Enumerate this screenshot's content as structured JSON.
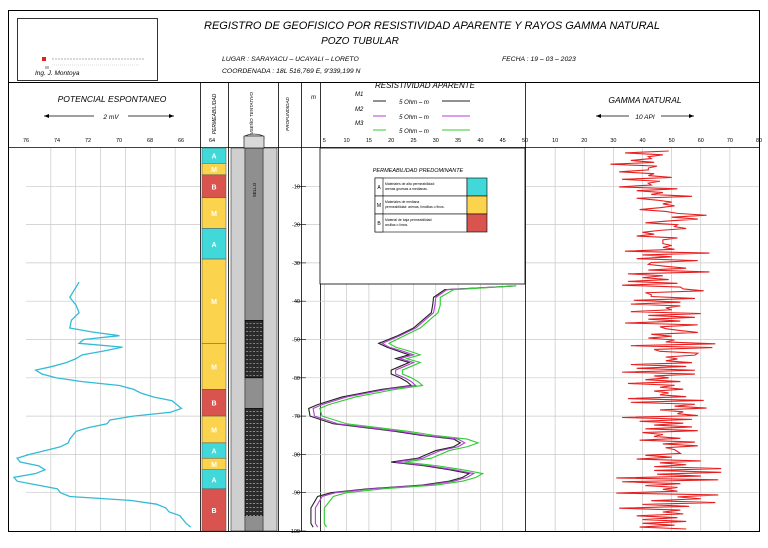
{
  "header": {
    "title": "REGISTRO DE GEOFISICO POR RESISTIVIDAD APARENTE Y RAYOS GAMMA NATURAL",
    "subtitle": "POZO TUBULAR",
    "location": "LUGAR : SARAYACU – UCAYALI – LORETO",
    "coordinates": "COORDENADA :  18L 516,769 E, 9'339,199  N",
    "date": "FECHA :  19 – 03 – 2023",
    "author": "Ing. J. Montoya"
  },
  "colors": {
    "sp": "#33bbd6",
    "gamma": "#e61e1e",
    "m1": "#222222",
    "m2": "#b03fd6",
    "m3": "#2ecc2e",
    "perm_A": "#40d8d8",
    "perm_M": "#fbd34d",
    "perm_B": "#d9534f"
  },
  "chart_data": [
    {
      "type": "line",
      "title": "POTENCIAL ESPONTANEO",
      "scale_label": "2 mV",
      "x_ticks": [
        "76",
        "74",
        "72",
        "70",
        "68",
        "66",
        "64"
      ],
      "xlim": [
        76,
        64
      ],
      "ylim": [
        0,
        100
      ],
      "y_name": "depth (m)",
      "points": [
        [
          71.8,
          35
        ],
        [
          72.1,
          37
        ],
        [
          72.4,
          39
        ],
        [
          72.0,
          41
        ],
        [
          71.8,
          43
        ],
        [
          72.3,
          45
        ],
        [
          72.4,
          47
        ],
        [
          71.0,
          48
        ],
        [
          69.2,
          49
        ],
        [
          71.5,
          50
        ],
        [
          71.8,
          51
        ],
        [
          69.0,
          52
        ],
        [
          70.2,
          53
        ],
        [
          71.6,
          54
        ],
        [
          72.0,
          55
        ],
        [
          72.6,
          56
        ],
        [
          73.5,
          57
        ],
        [
          74.6,
          58
        ],
        [
          74.2,
          59
        ],
        [
          73.3,
          60
        ],
        [
          71.6,
          61
        ],
        [
          69.2,
          62
        ],
        [
          68.3,
          63
        ],
        [
          67.8,
          64
        ],
        [
          67.0,
          65
        ],
        [
          65.8,
          66
        ],
        [
          65.5,
          67
        ],
        [
          65.2,
          68
        ],
        [
          65.9,
          69
        ],
        [
          68.3,
          70
        ],
        [
          69.8,
          71
        ],
        [
          70.0,
          72
        ],
        [
          71.2,
          73
        ],
        [
          72.0,
          74
        ],
        [
          72.2,
          75
        ],
        [
          72.4,
          76
        ],
        [
          72.5,
          77
        ],
        [
          73.0,
          78
        ],
        [
          74.0,
          79
        ],
        [
          75.0,
          80
        ],
        [
          75.8,
          81
        ],
        [
          75.6,
          82
        ],
        [
          74.4,
          83
        ],
        [
          74.0,
          84
        ],
        [
          74.6,
          85
        ],
        [
          76.0,
          86
        ],
        [
          75.8,
          87
        ],
        [
          74.5,
          88
        ],
        [
          73.2,
          89
        ],
        [
          73.0,
          90
        ],
        [
          72.4,
          91
        ],
        [
          68.5,
          92
        ],
        [
          66.8,
          93
        ],
        [
          66.2,
          94
        ],
        [
          66.0,
          95
        ],
        [
          65.3,
          96
        ],
        [
          65.1,
          97
        ],
        [
          64.9,
          98
        ],
        [
          64.6,
          99
        ]
      ]
    },
    {
      "type": "table",
      "title": "PERMEABILIDAD",
      "ylim": [
        0,
        100
      ],
      "intervals": [
        {
          "label": "A",
          "from": 0,
          "to": 4
        },
        {
          "label": "M",
          "from": 4,
          "to": 7
        },
        {
          "label": "B",
          "from": 7,
          "to": 13
        },
        {
          "label": "M",
          "from": 13,
          "to": 21
        },
        {
          "label": "A",
          "from": 21,
          "to": 29
        },
        {
          "label": "M",
          "from": 29,
          "to": 51
        },
        {
          "label": "M",
          "from": 51,
          "to": 63
        },
        {
          "label": "B",
          "from": 63,
          "to": 70
        },
        {
          "label": "M",
          "from": 70,
          "to": 77
        },
        {
          "label": "A",
          "from": 77,
          "to": 81
        },
        {
          "label": "M",
          "from": 81,
          "to": 84
        },
        {
          "label": "A",
          "from": 84,
          "to": 89
        },
        {
          "label": "B",
          "from": 89,
          "to": 100
        }
      ]
    },
    {
      "type": "table",
      "title": "DISEÑO TENTATIVO",
      "ylim": [
        0,
        100
      ],
      "seal_label": "SELLO",
      "blank_casing": [
        [
          0,
          45
        ],
        [
          60,
          68
        ],
        [
          96,
          100
        ]
      ],
      "screens": [
        [
          45,
          60
        ],
        [
          68,
          96
        ]
      ]
    },
    {
      "type": "line",
      "title": "RESISTIVIDAD APARENTE",
      "depth_label": "PROFUNDIDAD",
      "depth_unit": "m",
      "x_ticks": [
        "5",
        "10",
        "15",
        "20",
        "25",
        "30",
        "35",
        "40",
        "45",
        "50"
      ],
      "y_ticks": [
        "-10",
        "-20",
        "-30",
        "-40",
        "-50",
        "-60",
        "-70",
        "-80",
        "-90",
        "-100"
      ],
      "xlim": [
        0,
        50
      ],
      "ylim": [
        0,
        100
      ],
      "scale_labels": [
        "5 Ohm – m",
        "5 Ohm – m",
        "5 Ohm – m"
      ],
      "series": [
        {
          "name": "M1",
          "points": [
            [
              48,
              36
            ],
            [
              32,
              37
            ],
            [
              29.5,
              39
            ],
            [
              29.3,
              41
            ],
            [
              29.0,
              43
            ],
            [
              27,
              45
            ],
            [
              25,
              47
            ],
            [
              21.5,
              49
            ],
            [
              17.2,
              51
            ],
            [
              19.0,
              52
            ],
            [
              21.5,
              53
            ],
            [
              24,
              54
            ],
            [
              21,
              55
            ],
            [
              24,
              56
            ],
            [
              22,
              57
            ],
            [
              20,
              58
            ],
            [
              20.0,
              59
            ],
            [
              22.0,
              60
            ],
            [
              23.5,
              61
            ],
            [
              24.5,
              62
            ],
            [
              18,
              63
            ],
            [
              9.0,
              65
            ],
            [
              3.5,
              67
            ],
            [
              1.5,
              68
            ],
            [
              1.8,
              70
            ],
            [
              7.0,
              72
            ],
            [
              14,
              73
            ],
            [
              21.0,
              74
            ],
            [
              26.5,
              75
            ],
            [
              34.0,
              76
            ],
            [
              35.5,
              77
            ],
            [
              34.0,
              78
            ],
            [
              30,
              79
            ],
            [
              26,
              81
            ],
            [
              20.0,
              82
            ],
            [
              27.5,
              83
            ],
            [
              33.0,
              84
            ],
            [
              37.5,
              85
            ],
            [
              36.0,
              86
            ],
            [
              33.0,
              87
            ],
            [
              27,
              88
            ],
            [
              14.5,
              89
            ],
            [
              6.5,
              90
            ],
            [
              3.5,
              91
            ],
            [
              2.0,
              94
            ],
            [
              2.0,
              98
            ],
            [
              2.5,
              99
            ]
          ]
        },
        {
          "name": "M2",
          "points": [
            [
              48,
              36
            ],
            [
              32.5,
              37
            ],
            [
              30,
              39
            ],
            [
              29.8,
              41
            ],
            [
              29.5,
              43
            ],
            [
              27.5,
              45
            ],
            [
              25.5,
              47
            ],
            [
              22,
              49
            ],
            [
              18,
              51
            ],
            [
              19.5,
              52
            ],
            [
              22.5,
              53
            ],
            [
              25,
              54
            ],
            [
              22,
              55
            ],
            [
              25,
              56
            ],
            [
              23,
              57
            ],
            [
              21,
              58
            ],
            [
              21,
              59
            ],
            [
              23,
              60
            ],
            [
              24.5,
              61
            ],
            [
              25.5,
              62
            ],
            [
              19,
              63
            ],
            [
              10,
              65
            ],
            [
              4.5,
              67
            ],
            [
              2.5,
              68
            ],
            [
              2.8,
              70
            ],
            [
              8,
              72
            ],
            [
              15,
              73
            ],
            [
              22,
              74
            ],
            [
              27.5,
              75
            ],
            [
              35,
              76
            ],
            [
              36.5,
              77
            ],
            [
              35,
              78
            ],
            [
              31,
              79
            ],
            [
              27,
              81
            ],
            [
              21,
              82
            ],
            [
              28.5,
              83
            ],
            [
              34,
              84
            ],
            [
              38.5,
              85
            ],
            [
              37,
              86
            ],
            [
              34,
              87
            ],
            [
              28,
              88
            ],
            [
              15.5,
              89
            ],
            [
              7.5,
              90
            ],
            [
              4.5,
              91
            ],
            [
              3,
              94
            ],
            [
              3,
              98
            ],
            [
              3.5,
              99
            ]
          ]
        },
        {
          "name": "M3",
          "points": [
            [
              48,
              36
            ],
            [
              34,
              37
            ],
            [
              31,
              39
            ],
            [
              31,
              41
            ],
            [
              30.5,
              43
            ],
            [
              28.5,
              45
            ],
            [
              26.5,
              47
            ],
            [
              23,
              49
            ],
            [
              19.5,
              51
            ],
            [
              21,
              52
            ],
            [
              24,
              53
            ],
            [
              26.5,
              54
            ],
            [
              23.5,
              55
            ],
            [
              26.5,
              56
            ],
            [
              24.5,
              57
            ],
            [
              22.5,
              58
            ],
            [
              22.5,
              59
            ],
            [
              24.5,
              60
            ],
            [
              26,
              61
            ],
            [
              27,
              62
            ],
            [
              21,
              63
            ],
            [
              12,
              65
            ],
            [
              6,
              67
            ],
            [
              4,
              68
            ],
            [
              4.5,
              70
            ],
            [
              10,
              72
            ],
            [
              17,
              73
            ],
            [
              24,
              74
            ],
            [
              29.5,
              75
            ],
            [
              37,
              76
            ],
            [
              39.5,
              77
            ],
            [
              37,
              78
            ],
            [
              33,
              79
            ],
            [
              29,
              81
            ],
            [
              23,
              82
            ],
            [
              30.5,
              83
            ],
            [
              36,
              84
            ],
            [
              40.5,
              85
            ],
            [
              39,
              86
            ],
            [
              36,
              87
            ],
            [
              30,
              88
            ],
            [
              18,
              89
            ],
            [
              10,
              90
            ],
            [
              7,
              91
            ],
            [
              5,
              94
            ],
            [
              5,
              98
            ],
            [
              5.5,
              99
            ]
          ]
        }
      ],
      "legend_box": {
        "title": "PERMEABILIDAD PREDOMINANTE",
        "rows": [
          {
            "key": "A",
            "text": "Materiales de alta permeabilidad: arenas gruesas a medianas."
          },
          {
            "key": "M",
            "text": "Materiales de mediana permeabilidad: arenas, limolitas o finos."
          },
          {
            "key": "B",
            "text": "Material de baja permeabilidad: arcillas o limos."
          }
        ]
      }
    },
    {
      "type": "line",
      "title": "GAMMA NATURAL",
      "scale_label": "10 API",
      "x_ticks": [
        "10",
        "20",
        "30",
        "40",
        "50",
        "60",
        "70",
        "80"
      ],
      "xlim": [
        0,
        80
      ],
      "ylim": [
        0,
        100
      ],
      "series": [
        {
          "name": "",
          "values": [
            49,
            34,
            47,
            42,
            43,
            36,
            44,
            29,
            45,
            42,
            42,
            32,
            44,
            42,
            50,
            33,
            46,
            42,
            43,
            32,
            52,
            38,
            47,
            43,
            57,
            38,
            45,
            50,
            47,
            51,
            46,
            39,
            48,
            52,
            62,
            50,
            59,
            49,
            41,
            52,
            51,
            55,
            46,
            40,
            44,
            38,
            52,
            47,
            47,
            47,
            50,
            47,
            51,
            34,
            63,
            40,
            50,
            38,
            59,
            43,
            42,
            48,
            55,
            42,
            63,
            35,
            47,
            40,
            49,
            35,
            52,
            33,
            53,
            54,
            61,
            41,
            43,
            43,
            58,
            37,
            53,
            36,
            53,
            48,
            50,
            36,
            60,
            42,
            58,
            42,
            53,
            34,
            59,
            46,
            48,
            53,
            59,
            43,
            50,
            42,
            51,
            48,
            65,
            36,
            64,
            44,
            46,
            59,
            58,
            48,
            52,
            48,
            57,
            36,
            55,
            38,
            58,
            33,
            58,
            44,
            49,
            41,
            53,
            35,
            51,
            46,
            54,
            44,
            49,
            46,
            55,
            35,
            61,
            36,
            58,
            51,
            62,
            46,
            54,
            52,
            59,
            33,
            57,
            39,
            54,
            44,
            57,
            41,
            59,
            40,
            47,
            44,
            53,
            39,
            58,
            47,
            59,
            48,
            51,
            52,
            53,
            41,
            50,
            38,
            60,
            46,
            55,
            44,
            67,
            44,
            67,
            45,
            60,
            31,
            66,
            33,
            53,
            41,
            52,
            47,
            52,
            31,
            66,
            52,
            60,
            43,
            65,
            40,
            56,
            32,
            53,
            47,
            54,
            38,
            52,
            40,
            55,
            40,
            51,
            39,
            55
          ]
        }
      ]
    }
  ]
}
